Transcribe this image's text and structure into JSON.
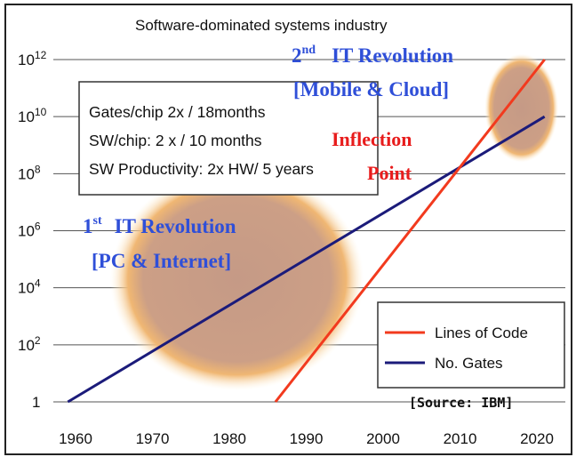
{
  "chart_data": {
    "type": "line",
    "title": "Software-dominated systems industry",
    "x": [
      1960,
      1970,
      1980,
      1990,
      2000,
      2010,
      2020
    ],
    "xlim": [
      1960,
      2020
    ],
    "ylim_log10": [
      0,
      12
    ],
    "y_scale": "log",
    "y_ticks": [
      {
        "exp": 0,
        "base": "1",
        "sup": ""
      },
      {
        "exp": 2,
        "base": "10",
        "sup": "2"
      },
      {
        "exp": 4,
        "base": "10",
        "sup": "4"
      },
      {
        "exp": 6,
        "base": "10",
        "sup": "6"
      },
      {
        "exp": 8,
        "base": "10",
        "sup": "8"
      },
      {
        "exp": 10,
        "base": "10",
        "sup": "10"
      },
      {
        "exp": 12,
        "base": "10",
        "sup": "12"
      }
    ],
    "series": [
      {
        "name": "Lines of Code",
        "color": "#f23a1e",
        "x": [
          1986,
          2021
        ],
        "log10_values": [
          0,
          12
        ]
      },
      {
        "name": "No. Gates",
        "color": "#1b1b7a",
        "x": [
          1959,
          2021
        ],
        "log10_values": [
          0,
          10
        ]
      }
    ]
  },
  "info_box": {
    "line1": "Gates/chip 2x / 18months",
    "line2": "SW/chip:  2 x / 10 months",
    "line3": "SW Productivity: 2x HW/ 5 years"
  },
  "annotations": {
    "rev1_line1_main": "1",
    "rev1_line1_sup": "st",
    "rev1_line1_rest": "IT Revolution",
    "rev1_line2": "[PC & Internet]",
    "rev2_line1_main": "2",
    "rev2_line1_sup": "nd",
    "rev2_line1_rest": "IT Revolution",
    "rev2_line2": "[Mobile & Cloud]",
    "inflection_line1": "Inflection",
    "inflection_line2": "Point",
    "source": "[Source: IBM]"
  },
  "highlights": [
    {
      "name": "first-revolution",
      "x_center": 1981,
      "log10_center": 4.3,
      "x_radius": 16.5,
      "log10_radius": 3.9
    },
    {
      "name": "second-revolution",
      "x_center": 2018,
      "log10_center": 10.3,
      "x_radius": 4.8,
      "log10_radius": 1.9
    }
  ]
}
